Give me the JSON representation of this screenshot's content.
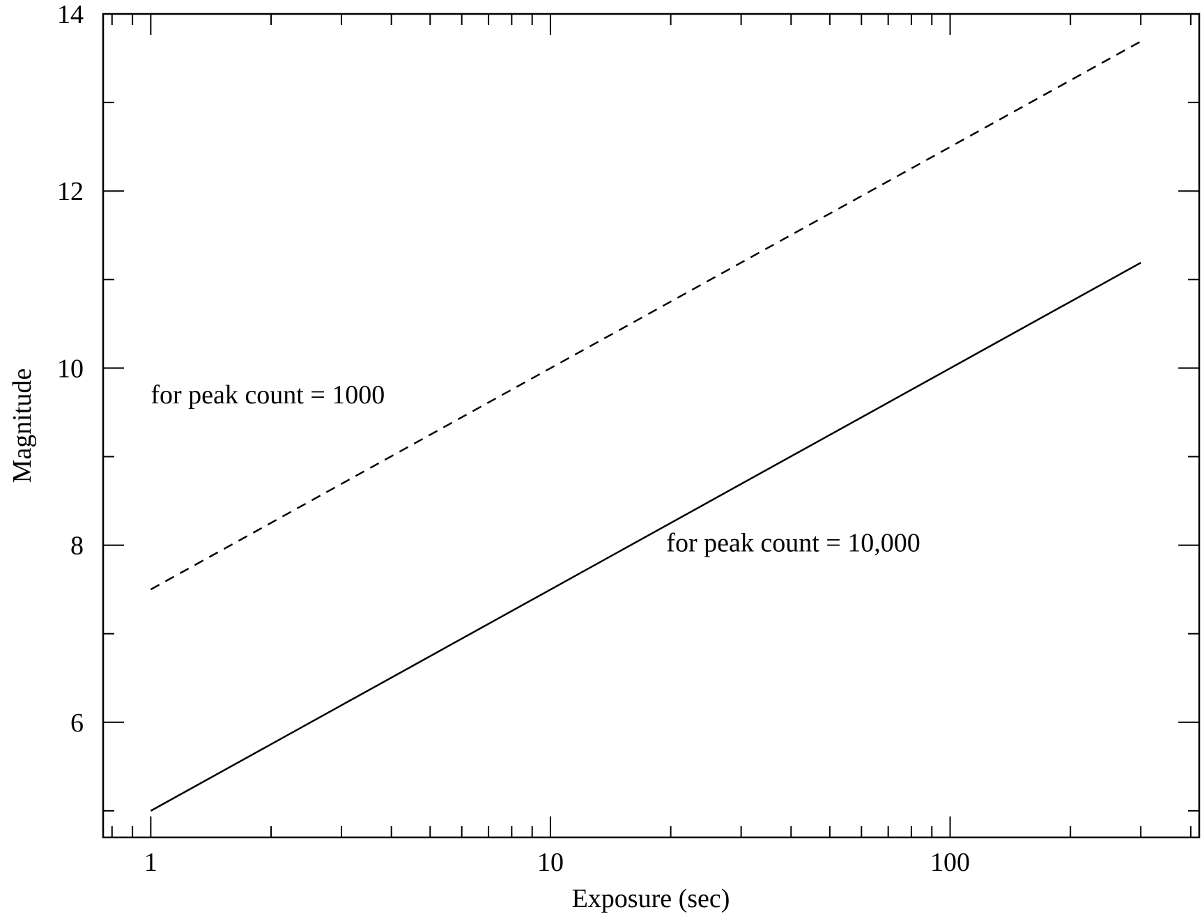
{
  "chart_data": {
    "type": "line",
    "xlabel": "Exposure (sec)",
    "ylabel": "Magnitude",
    "xscale": "log",
    "xlim": [
      0.76,
      420
    ],
    "ylim": [
      4.7,
      14
    ],
    "grid": false,
    "x_ticks": [
      1,
      10,
      100
    ],
    "x_tick_labels": [
      "1",
      "10",
      "100"
    ],
    "y_ticks": [
      6,
      8,
      10,
      12,
      14
    ],
    "y_tick_labels": [
      "6",
      "8",
      "10",
      "12",
      "14"
    ],
    "series": [
      {
        "style": "dashed",
        "x": [
          1,
          300
        ],
        "y": [
          7.5,
          13.69
        ]
      },
      {
        "style": "solid",
        "x": [
          1,
          300
        ],
        "y": [
          5.0,
          11.19
        ]
      }
    ],
    "annotations": [
      {
        "text": "for peak count = 1000",
        "x": 1,
        "y": 9.6
      },
      {
        "text": "for peak count = 10,000",
        "x": 19.5,
        "y": 7.93
      }
    ]
  }
}
